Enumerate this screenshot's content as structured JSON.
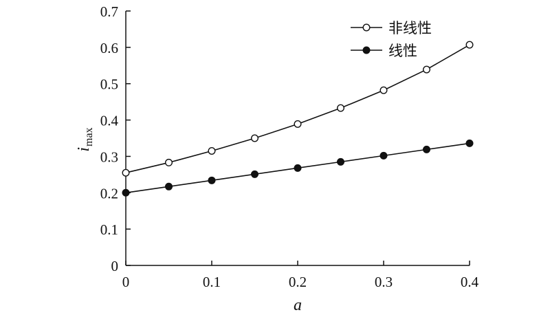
{
  "chart_data": {
    "type": "line",
    "xlabel": "a",
    "ylabel_main": "i",
    "ylabel_sub": "max",
    "xlim": [
      0,
      0.4
    ],
    "ylim": [
      0,
      0.7
    ],
    "x_ticks": [
      0,
      0.1,
      0.2,
      0.3,
      0.4
    ],
    "x_tick_labels": [
      "0",
      "0.1",
      "0.2",
      "0.3",
      "0.4"
    ],
    "y_ticks": [
      0,
      0.1,
      0.2,
      0.3,
      0.4,
      0.5,
      0.6,
      0.7
    ],
    "y_tick_labels": [
      "0",
      "0.1",
      "0.2",
      "0.3",
      "0.4",
      "0.5",
      "0.6",
      "0.7"
    ],
    "grid": false,
    "legend_position": "top-right",
    "x": [
      0,
      0.05,
      0.1,
      0.15,
      0.2,
      0.25,
      0.3,
      0.35,
      0.4
    ],
    "series": [
      {
        "name": "非线性",
        "marker": "open-circle",
        "values": [
          0.255,
          0.283,
          0.315,
          0.35,
          0.389,
          0.433,
          0.482,
          0.539,
          0.607
        ]
      },
      {
        "name": "线性",
        "marker": "filled-circle",
        "values": [
          0.2,
          0.217,
          0.234,
          0.251,
          0.268,
          0.285,
          0.302,
          0.319,
          0.336
        ]
      }
    ],
    "colors": {
      "line": "#111111",
      "marker_fill_open": "#ffffff",
      "marker_fill_solid": "#111111"
    }
  }
}
